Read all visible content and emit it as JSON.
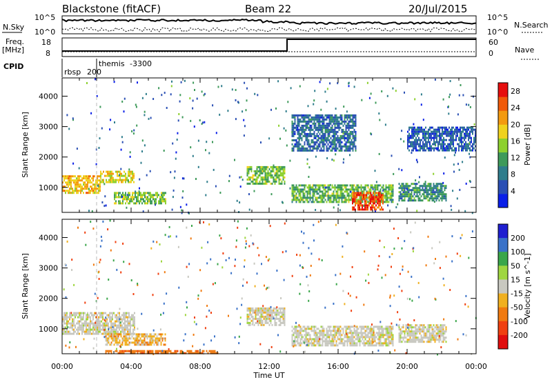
{
  "header": {
    "station": "Blackstone (fitACF)",
    "beam": "Beam 22",
    "date": "20/Jul/2015"
  },
  "meta_panel": {
    "nsky_label": "N.Sky",
    "nsky_tick_top": "10^5",
    "nsky_tick_bottom": "10^0",
    "nsearch_label": "N.Search",
    "nsearch_tick_top": "10^5",
    "nsearch_tick_bottom": "10^0",
    "freq_label_1": "Freq.",
    "freq_label_2": "[MHz]",
    "freq_tick_top": "18",
    "freq_tick_bottom": "8",
    "nave_label": "Nave",
    "nave_tick_top": "60",
    "nave_tick_bottom": "0",
    "cpid_label": "CPID",
    "cpid_segments": [
      {
        "name": "rbsp",
        "id": "200",
        "start_hour": 0.0
      },
      {
        "name": "themis",
        "id": "-3300",
        "start_hour": 2.0
      }
    ]
  },
  "colors": {
    "power_scale": [
      "#0a1fe8",
      "#2a4fb4",
      "#2f7d8c",
      "#3e9a5a",
      "#8dd02e",
      "#f0d21e",
      "#f39a10",
      "#f05a0a",
      "#e60e0e"
    ],
    "velocity_scale": [
      "#1f1fd0",
      "#3a72c8",
      "#3aa64a",
      "#9fd640",
      "#c8c8c0",
      "#f0b020",
      "#f07a10",
      "#f04010",
      "#e00e0e"
    ]
  },
  "chart_data": [
    {
      "type": "heatmap",
      "title": "Power",
      "xlabel": "",
      "ylabel": "Slant Range [km]",
      "xlim_hours": [
        0,
        24
      ],
      "ylim_km": [
        180,
        4600
      ],
      "x_ticks": [
        "00:00",
        "04:00",
        "08:00",
        "12:00",
        "16:00",
        "20:00",
        "00:00"
      ],
      "y_ticks": [
        1000,
        2000,
        3000,
        4000
      ],
      "colorbar": {
        "label": "Power [dB]",
        "ticks": [
          4,
          8,
          12,
          16,
          20,
          24,
          28
        ],
        "range": [
          0,
          30
        ]
      },
      "regions": [
        {
          "start_hour": 0.0,
          "end_hour": 2.2,
          "range_km": [
            850,
            1400
          ],
          "power_db": 20
        },
        {
          "start_hour": 2.2,
          "end_hour": 4.2,
          "range_km": [
            1150,
            1550
          ],
          "power_db": 18
        },
        {
          "start_hour": 3.0,
          "end_hour": 6.0,
          "range_km": [
            450,
            850
          ],
          "power_db": 14
        },
        {
          "start_hour": 10.7,
          "end_hour": 12.9,
          "range_km": [
            1150,
            1700
          ],
          "power_db": 14
        },
        {
          "start_hour": 13.3,
          "end_hour": 19.2,
          "range_km": [
            500,
            1100
          ],
          "power_db": 13
        },
        {
          "start_hour": 16.8,
          "end_hour": 18.6,
          "range_km": [
            300,
            850
          ],
          "power_db": 26
        },
        {
          "start_hour": 19.5,
          "end_hour": 22.3,
          "range_km": [
            600,
            1150
          ],
          "power_db": 10
        },
        {
          "start_hour": 13.3,
          "end_hour": 17.0,
          "range_km": [
            2200,
            3400
          ],
          "power_db": 7
        },
        {
          "start_hour": 20.0,
          "end_hour": 24.0,
          "range_km": [
            2200,
            3000
          ],
          "power_db": 6
        }
      ]
    },
    {
      "type": "heatmap",
      "title": "Velocity",
      "xlabel": "Time UT",
      "ylabel": "Slant Range [km]",
      "xlim_hours": [
        0,
        24
      ],
      "ylim_km": [
        180,
        4600
      ],
      "x_ticks": [
        "00:00",
        "04:00",
        "08:00",
        "12:00",
        "16:00",
        "20:00",
        "00:00"
      ],
      "y_ticks": [
        1000,
        2000,
        3000,
        4000
      ],
      "colorbar": {
        "label": "Velocity [m s^-1]",
        "ticks": [
          200,
          100,
          50,
          15,
          -15,
          -50,
          -100,
          -200
        ]
      },
      "regions": [
        {
          "start_hour": 0.0,
          "end_hour": 4.2,
          "range_km": [
            850,
            1550
          ],
          "velocity": 0
        },
        {
          "start_hour": 2.5,
          "end_hour": 6.0,
          "range_km": [
            450,
            850
          ],
          "velocity": -20
        },
        {
          "start_hour": 10.7,
          "end_hour": 12.9,
          "range_km": [
            1150,
            1700
          ],
          "velocity": 0
        },
        {
          "start_hour": 13.3,
          "end_hour": 19.2,
          "range_km": [
            450,
            1100
          ],
          "velocity": 0
        },
        {
          "start_hour": 19.5,
          "end_hour": 22.3,
          "range_km": [
            600,
            1150
          ],
          "velocity": 0
        },
        {
          "start_hour": 2.5,
          "end_hour": 9.0,
          "range_km": [
            180,
            300
          ],
          "velocity": -60
        }
      ]
    }
  ]
}
